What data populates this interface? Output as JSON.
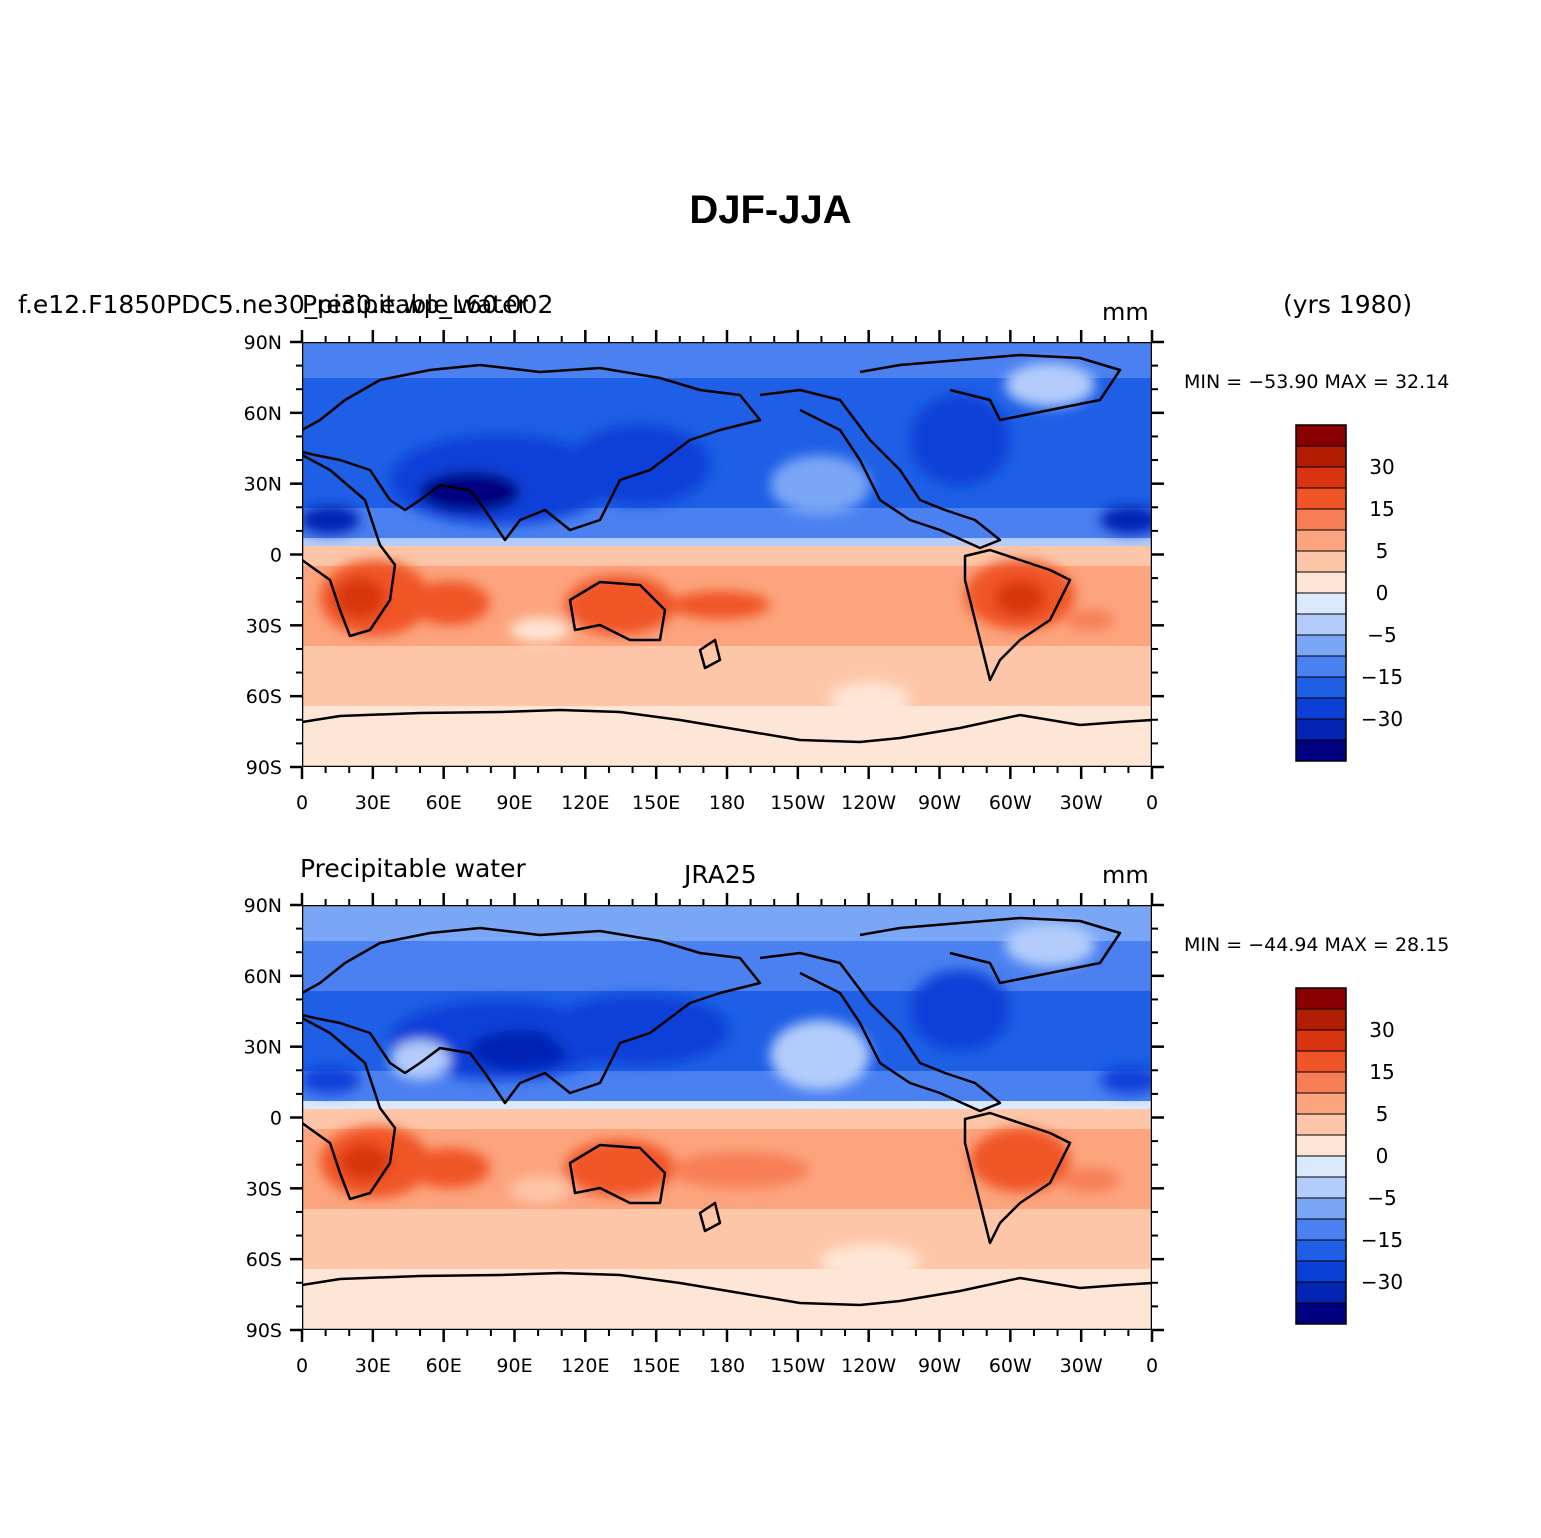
{
  "figure": {
    "title": "DJF-JJA",
    "years_label": "(yrs 1980)"
  },
  "colorbar": {
    "colors": [
      "#000080",
      "#0424b4",
      "#0a3fd8",
      "#1e5fe6",
      "#4a80f0",
      "#7aa6f6",
      "#b3ccfb",
      "#dbe9fd",
      "#fee6d6",
      "#fdc6a8",
      "#fca47e",
      "#f77e54",
      "#f05426",
      "#d83410",
      "#b11d00",
      "#8a0000"
    ],
    "labels": [
      "30",
      "15",
      "5",
      "0",
      "-5",
      "-15",
      "-30"
    ]
  },
  "panels": [
    {
      "left_label": "f.e12.F1850PDC5.ne30_pi30.e.wp_L60.002",
      "overlay_label": "Precipitable water",
      "center_label": "",
      "units": "mm",
      "min_max": "MIN = −53.90  MAX =   32.14"
    },
    {
      "left_label": "Precipitable water",
      "overlay_label": "",
      "center_label": "JRA25",
      "units": "mm",
      "min_max": "MIN = −44.94  MAX =   28.15"
    }
  ],
  "axes": {
    "lat_ticks": [
      "90N",
      "60N",
      "30N",
      "0",
      "30S",
      "60S",
      "90S"
    ],
    "lon_ticks": [
      "0",
      "30E",
      "60E",
      "90E",
      "120E",
      "150E",
      "180",
      "150W",
      "120W",
      "90W",
      "60W",
      "30W",
      "0"
    ]
  }
}
